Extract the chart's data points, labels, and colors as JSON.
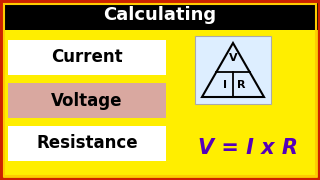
{
  "title": "Calculating",
  "title_bg": "#000000",
  "title_color": "#ffffff",
  "main_bg": "#ffee00",
  "border_color_outer": "#cc2200",
  "border_color_inner": "#ffcc00",
  "labels": [
    "Current",
    "Voltage",
    "Resistance"
  ],
  "label_bgs": [
    "#ffffff",
    "#d9a8a0",
    "#ffffff"
  ],
  "label_text_color": "#000000",
  "formula": "V = I x R",
  "formula_color": "#5500bb",
  "triangle_bg": "#ddeeff",
  "triangle_label_color": "#000000",
  "figw": 3.2,
  "figh": 1.8,
  "dpi": 100
}
